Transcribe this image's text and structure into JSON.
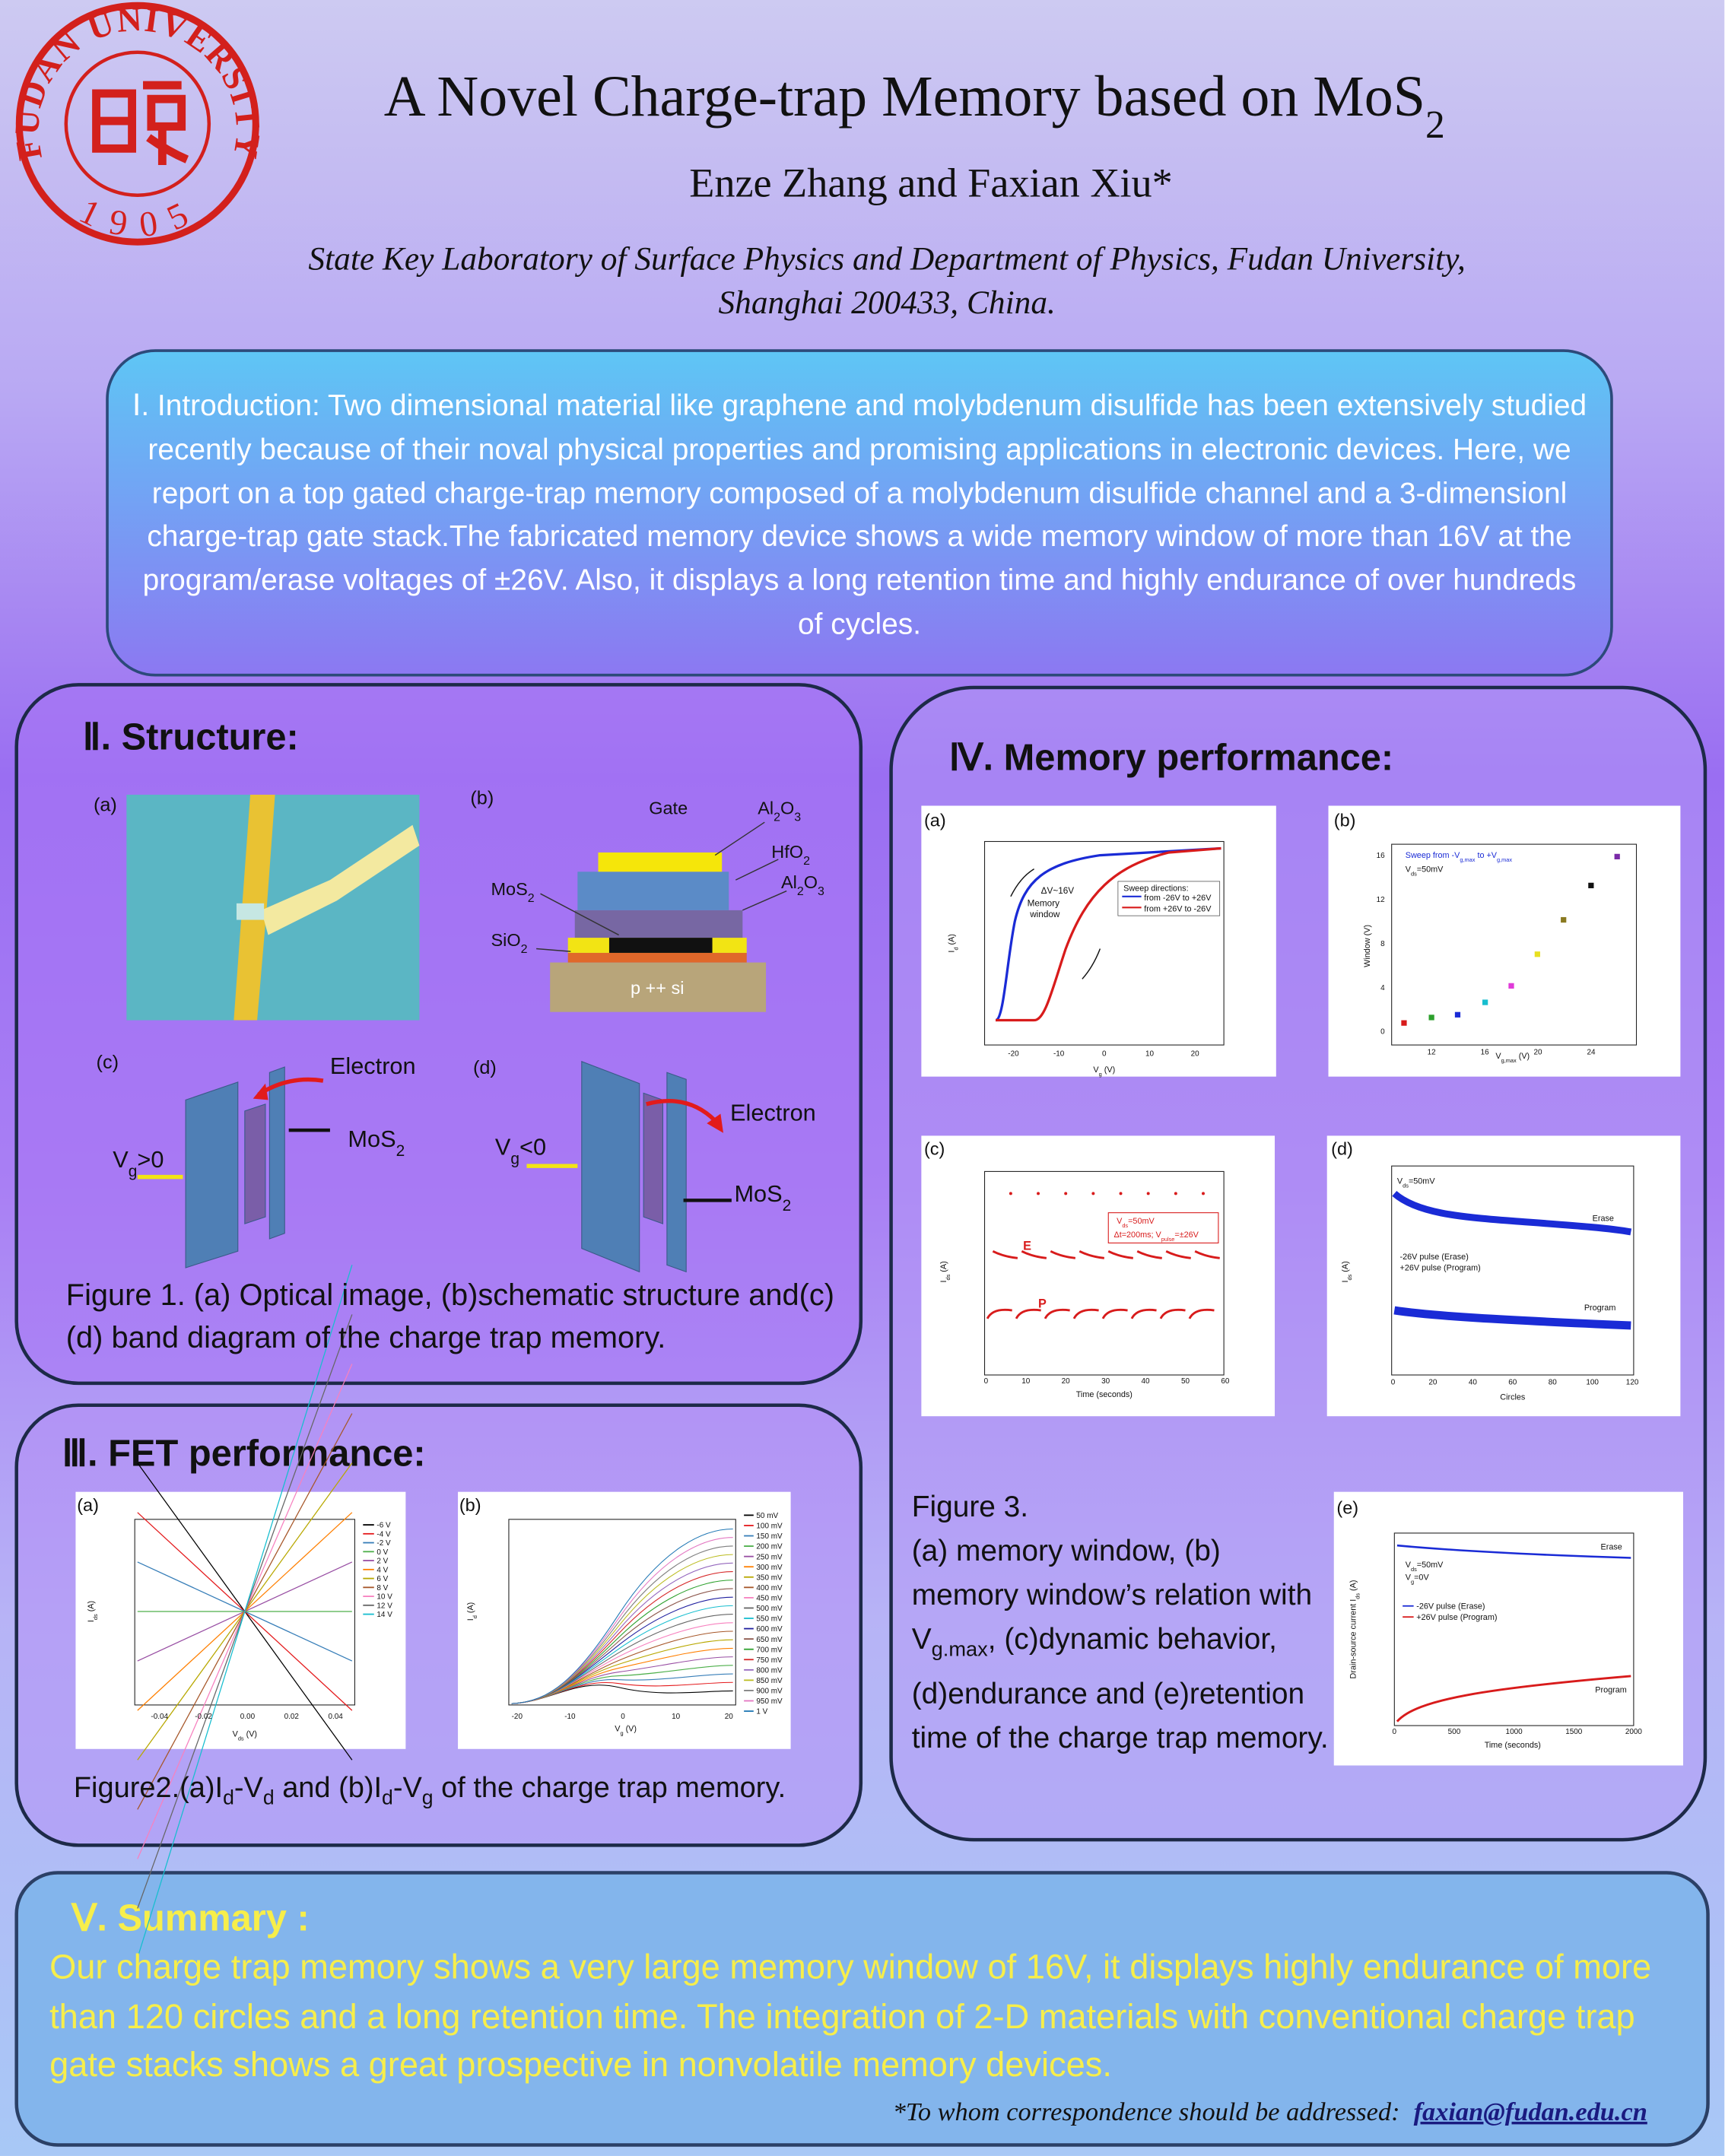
{
  "header": {
    "logo": {
      "name": "FUDAN UNIVERSITY",
      "year": "1905"
    },
    "title": [
      "A Novel Charge-trap Memory based on MoS",
      "2"
    ],
    "authors": "Enze Zhang and Faxian Xiu*",
    "affiliation": [
      "State Key Laboratory of Surface Physics and Department of Physics, Fudan University,",
      "Shanghai 200433, China."
    ]
  },
  "introduction": {
    "text": "Ⅰ. Introduction: Two dimensional material like graphene and molybdenum disulfide has been extensively studied recently because of their noval physical properties and promising applications in electronic devices. Here, we report on a top gated charge-trap memory composed of a molybdenum disulfide channel and a 3-dimensionl charge-trap gate stack.The fabricated memory device shows a wide memory window of more than 16V at the program/erase voltages of ±26V. Also, it displays a long retention time and highly endurance of over hundreds of cycles."
  },
  "structure": {
    "heading": "Ⅱ. Structure:",
    "a": {
      "label": "(a)"
    },
    "b": {
      "label": "(b)",
      "gate": "Gate",
      "al2o3_top": [
        "Al",
        "2",
        "O",
        "3"
      ],
      "hfo2": [
        "HfO",
        "2"
      ],
      "al2o3_bottom": [
        "Al",
        "2",
        "O",
        "3"
      ],
      "mos2": [
        "MoS",
        "2"
      ],
      "sio2": [
        "SiO",
        "2"
      ],
      "substrate": "p ++ si"
    },
    "c": {
      "label": "(c)",
      "electron": "Electron",
      "mos2": [
        "MoS",
        "2"
      ],
      "vg": [
        "V",
        "g",
        ">0"
      ]
    },
    "d": {
      "label": "(d)",
      "electron": "Electron",
      "mos2": [
        "MoS",
        "2"
      ],
      "vg": [
        "V",
        "g",
        "<0"
      ]
    },
    "caption": "Figure 1. (a) Optical image, (b)schematic structure and(c)(d) band diagram of the charge trap memory."
  },
  "fet": {
    "heading": "Ⅲ. FET performance:",
    "a": {
      "label": "(a)",
      "legend": [
        "-6 V",
        "-4 V",
        "-2 V",
        "0 V",
        "2 V",
        "4 V",
        "6 V",
        "8 V",
        "10 V",
        "12 V",
        "14 V"
      ],
      "xticks": [
        "-0.04",
        "-0.02",
        "0.00",
        "0.02",
        "0.04"
      ],
      "xlabel": [
        "V",
        "ds",
        " (V)"
      ],
      "ylabel": [
        "I",
        "ds",
        " (A)"
      ]
    },
    "b": {
      "label": "(b)",
      "legend": [
        "50 mV",
        "100 mV",
        "150 mV",
        "200 mV",
        "250 mV",
        "300 mV",
        "350 mV",
        "400 mV",
        "450 mV",
        "500 mV",
        "550 mV",
        "600 mV",
        "650 mV",
        "700 mV",
        "750 mV",
        "800 mV",
        "850 mV",
        "900 mV",
        "950 mV",
        "1 V"
      ],
      "xticks": [
        "-20",
        "-10",
        "0",
        "10",
        "20"
      ],
      "xlabel": [
        "V",
        "g",
        " (V)"
      ],
      "ylabel": [
        "I",
        "d",
        " (A)"
      ]
    },
    "caption": [
      "Figure2.(a)I",
      "d",
      "-V",
      "d",
      " and (b)I",
      "d",
      "-V",
      "g",
      " of the charge trap memory."
    ]
  },
  "memory": {
    "heading": "Ⅳ. Memory performance:",
    "a": {
      "label": "(a)",
      "delta": "ΔV~16V",
      "window": [
        "Memory",
        "window"
      ],
      "sweep": "Sweep directions:",
      "forward": "from -26V to +26V",
      "backward": "from +26V to -26V",
      "xticks": [
        "-20",
        "-10",
        "0",
        "10",
        "20"
      ],
      "xlabel": [
        "V",
        "g",
        " (V)"
      ],
      "ylabel": [
        "I",
        "d",
        " (A)"
      ]
    },
    "b": {
      "label": "(b)",
      "sweep": [
        "Sweep from -V",
        "g,max",
        " to +V",
        "g,max"
      ],
      "vds": [
        "V",
        "ds",
        "=50mV"
      ],
      "ylabel": "Window (V)",
      "xlabel": [
        "V",
        "g,max",
        " (V)"
      ],
      "xticks": [
        "12",
        "16",
        "20",
        "24"
      ],
      "yticks": [
        "0",
        "4",
        "8",
        "12",
        "16"
      ]
    },
    "c": {
      "label": "(c)",
      "vds": [
        "V",
        "ds",
        "=50mV"
      ],
      "pulse": [
        "Δt=200ms; V",
        "pulse",
        "=±26V"
      ],
      "erase": "E",
      "program": "P",
      "xlabel": "Time (seconds)",
      "ylabel": [
        "I",
        "ds",
        " (A)"
      ],
      "xticks": [
        "0",
        "10",
        "20",
        "30",
        "40",
        "50",
        "60"
      ]
    },
    "d": {
      "label": "(d)",
      "vds": [
        "V",
        "ds",
        "=50mV"
      ],
      "erase": "Erase",
      "legend": [
        "-26V pulse (Erase)",
        "+26V pulse (Program)"
      ],
      "program": "Program",
      "xlabel": "Circles",
      "ylabel": [
        "I",
        "ds",
        " (A)"
      ],
      "xticks": [
        "0",
        "20",
        "40",
        "60",
        "80",
        "100",
        "120"
      ]
    },
    "e": {
      "label": "(e)",
      "erase": "Erase",
      "vds": [
        "V",
        "ds",
        "=50mV"
      ],
      "vg": [
        "V",
        "g",
        "=0V"
      ],
      "legend": [
        "-26V pulse (Erase)",
        "+26V pulse (Program)"
      ],
      "program": "Program",
      "xlabel": "Time (seconds)",
      "ylabel": [
        "Drain-source current I",
        "ds",
        " (A)"
      ],
      "xticks": [
        "0",
        "500",
        "1000",
        "1500",
        "2000"
      ]
    },
    "caption_title": "Figure 3.",
    "caption": [
      "(a) memory window, (b) memory window’s relation with V",
      "g.max",
      ", (c)dynamic behavior, (d)endurance and (e)retention time of the charge trap memory."
    ]
  },
  "summary": {
    "heading": "Ⅴ. Summary :",
    "text": "Our charge trap memory shows a very large memory window of 16V, it displays highly endurance of more than 120 circles and a long retention time. The integration of 2-D materials with conventional charge trap gate stacks shows a great prospective in nonvolatile memory devices.",
    "correspondence": "*To whom correspondence should be addressed:",
    "email": "faxian@fudan.edu.cn"
  }
}
